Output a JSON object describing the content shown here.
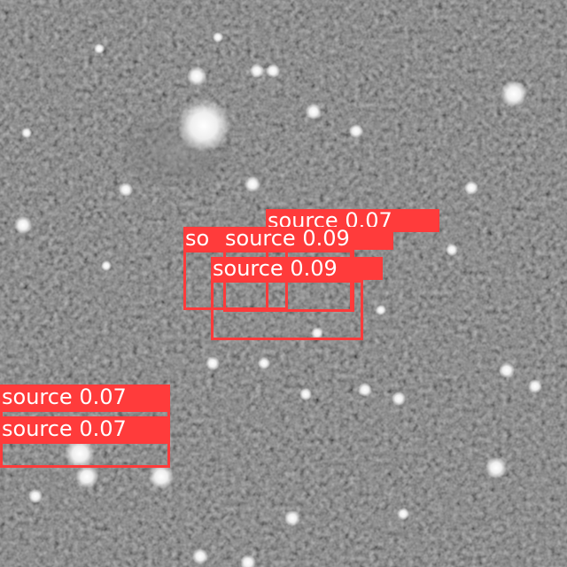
{
  "detections": [
    {
      "label": "source 0.07"
    },
    {
      "label": "so"
    },
    {
      "label": "source 0.09"
    },
    {
      "label": "source 0.09"
    },
    {
      "label": "source 0.07"
    },
    {
      "label": "source 0.07"
    }
  ]
}
